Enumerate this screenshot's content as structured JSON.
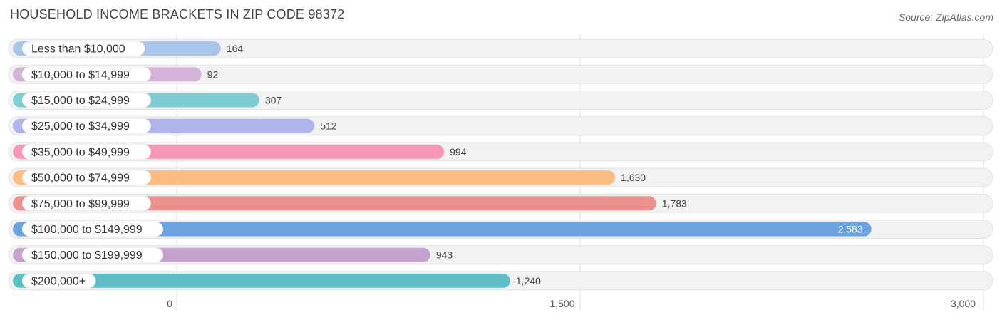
{
  "title": "HOUSEHOLD INCOME BRACKETS IN ZIP CODE 98372",
  "source": "Source: ZipAtlas.com",
  "chart_data": {
    "type": "bar",
    "orientation": "horizontal",
    "title": "HOUSEHOLD INCOME BRACKETS IN ZIP CODE 98372",
    "xlabel": "",
    "ylabel": "",
    "xlim": [
      0,
      3000
    ],
    "categories": [
      "Less than $10,000",
      "$10,000 to $14,999",
      "$15,000 to $24,999",
      "$25,000 to $34,999",
      "$35,000 to $49,999",
      "$50,000 to $74,999",
      "$75,000 to $99,999",
      "$100,000 to $149,999",
      "$150,000 to $199,999",
      "$200,000+"
    ],
    "values": [
      164,
      92,
      307,
      512,
      994,
      1630,
      1783,
      2583,
      943,
      1240
    ],
    "value_labels": [
      "164",
      "92",
      "307",
      "512",
      "994",
      "1,630",
      "1,783",
      "2,583",
      "943",
      "1,240"
    ],
    "colors": [
      "#a8c6ec",
      "#d4b3d8",
      "#7ecdd3",
      "#afb5ea",
      "#f796b7",
      "#fbbd82",
      "#ec918c",
      "#6aa3e0",
      "#c5a2cb",
      "#5fbfc6"
    ],
    "ticks": [
      0,
      1500,
      3000
    ],
    "tick_labels": [
      "0",
      "1,500",
      "3,000"
    ],
    "grid": true
  }
}
